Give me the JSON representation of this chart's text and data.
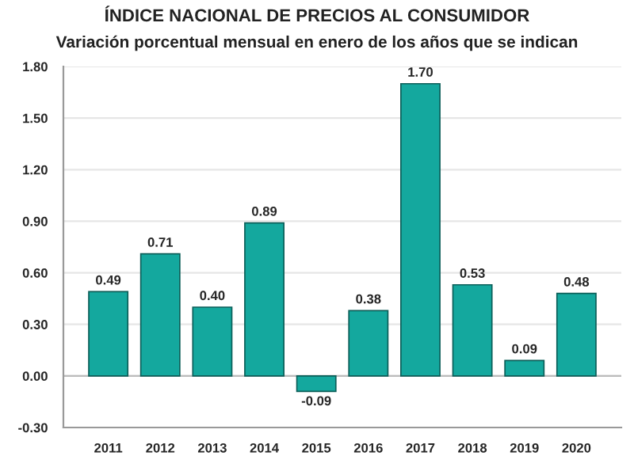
{
  "chart_data": {
    "type": "bar",
    "title": "ÍNDICE NACIONAL DE PRECIOS AL CONSUMIDOR",
    "subtitle": "Variación porcentual mensual en enero de los años que se indican",
    "categories": [
      "2011",
      "2012",
      "2013",
      "2014",
      "2015",
      "2016",
      "2017",
      "2018",
      "2019",
      "2020"
    ],
    "values": [
      0.49,
      0.71,
      0.4,
      0.89,
      -0.09,
      0.38,
      1.7,
      0.53,
      0.09,
      0.48
    ],
    "color": "#14a89e",
    "value_labels": [
      "0.49",
      "0.71",
      "0.40",
      "0.89",
      "-0.09",
      "0.38",
      "1.70",
      "0.53",
      "0.09",
      "0.48"
    ],
    "ylim": [
      -0.3,
      1.8
    ],
    "yticks": [
      {
        "value": -0.3,
        "label": "-0.30"
      },
      {
        "value": 0,
        "label": "0.00"
      },
      {
        "value": 0.3,
        "label": "0.30"
      },
      {
        "value": 0.6,
        "label": "0.60"
      },
      {
        "value": 0.9,
        "label": "0.90"
      },
      {
        "value": 1.2,
        "label": "1.20"
      },
      {
        "value": 1.5,
        "label": "1.50"
      },
      {
        "value": 1.8,
        "label": "1.80"
      }
    ],
    "grid": "y"
  }
}
